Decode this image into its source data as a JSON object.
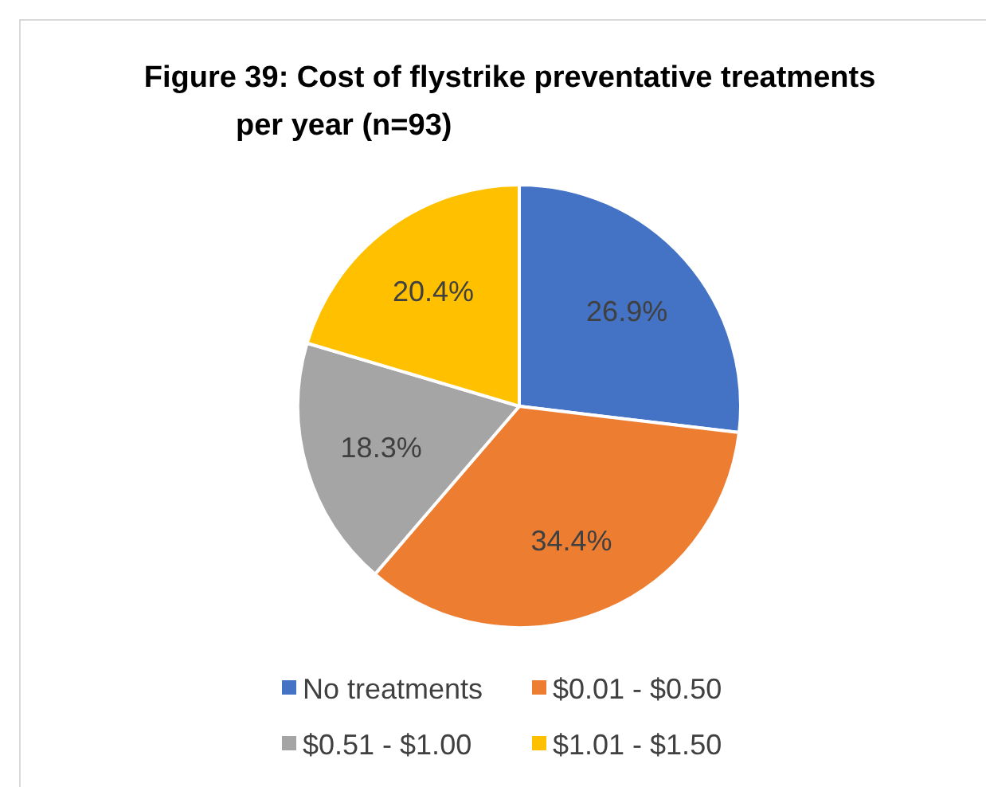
{
  "chart_data": {
    "type": "pie",
    "title": "Figure 39: Cost of flystrike preventative treatments per year (n=93)",
    "categories": [
      "No treatments",
      "$0.01 - $0.50",
      "$0.51 - $1.00",
      "$1.01 - $1.50"
    ],
    "values": [
      26.9,
      34.4,
      18.3,
      20.4
    ],
    "colors": [
      "#4472c4",
      "#ed7d31",
      "#a5a5a5",
      "#ffc000"
    ],
    "value_labels": [
      "26.9%",
      "34.4%",
      "18.3%",
      "20.4%"
    ],
    "legend": "bottom"
  }
}
